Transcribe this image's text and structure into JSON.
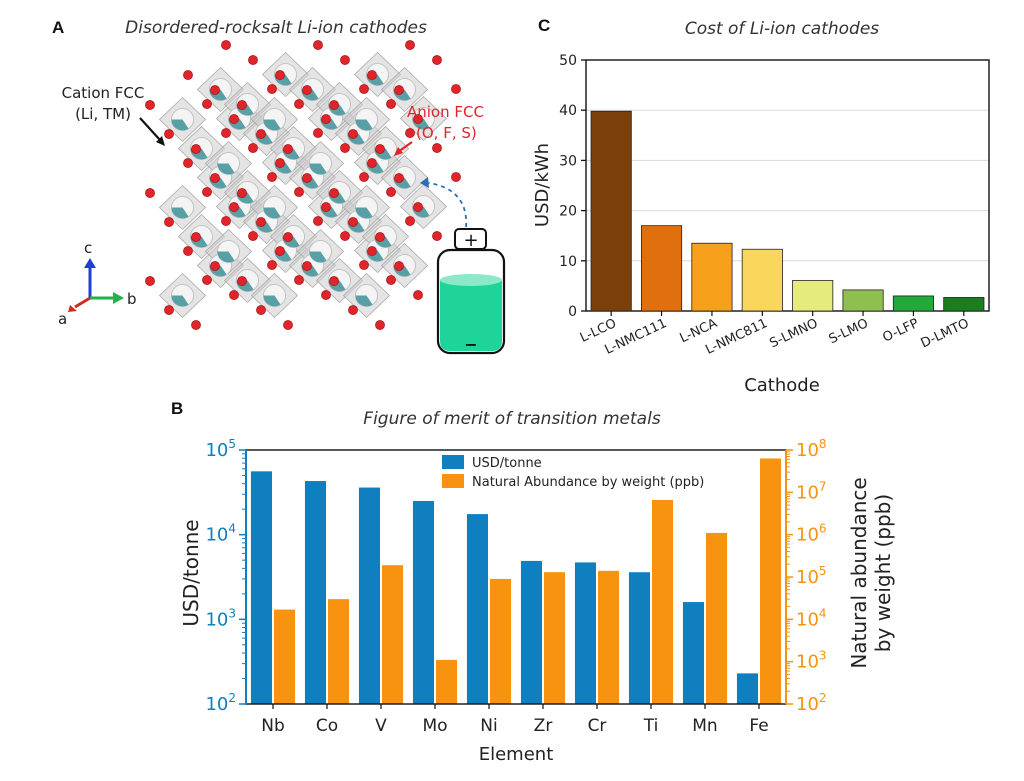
{
  "panels": {
    "a": {
      "letter": "A",
      "title": "Disordered-rocksalt Li-ion cathodes",
      "cation_label_1": "Cation FCC",
      "cation_label_2": "(Li, TM)",
      "anion_label_1": "Anion FCC",
      "anion_label_2": "(O, F, S)",
      "axis_c": "c",
      "axis_a": "a",
      "axis_b": "b",
      "battery_plus": "+",
      "battery_minus": "−",
      "colors": {
        "anion": "#e0242a",
        "cation": "#3d8f98",
        "battery_liquid": "#1fd49a"
      }
    },
    "b": {
      "letter": "B"
    },
    "c": {
      "letter": "C"
    }
  },
  "chart_data": [
    {
      "id": "C",
      "type": "bar",
      "title": "Cost of Li-ion cathodes",
      "xlabel": "Cathode",
      "ylabel": "USD/kWh",
      "ylim": [
        0,
        50
      ],
      "yticks": [
        0,
        10,
        20,
        30,
        40,
        50
      ],
      "grid": true,
      "categories": [
        "L-LCO",
        "L-NMC111",
        "L-NCA",
        "L-NMC811",
        "S-LMNO",
        "S-LMO",
        "O-LFP",
        "D-LMTO"
      ],
      "values": [
        39.8,
        17.0,
        13.5,
        12.3,
        6.1,
        4.2,
        3.0,
        2.7
      ],
      "colors": [
        "#7a3f0a",
        "#e0700e",
        "#f6a01c",
        "#f9d75c",
        "#e3ec7d",
        "#8fc04f",
        "#23a83a",
        "#1a7e1f"
      ]
    },
    {
      "id": "B",
      "type": "bar",
      "title": "Figure of merit of transition metals",
      "xlabel": "Element",
      "ylabel": "USD/tonne",
      "ylabel_right_1": "Natural abundance",
      "ylabel_right_2": "by weight (ppb)",
      "yscale": "log",
      "ylim": [
        100,
        100000
      ],
      "ylim_right": [
        100,
        100000000
      ],
      "legend_position": "top-center",
      "categories": [
        "Nb",
        "Co",
        "V",
        "Mo",
        "Ni",
        "Zr",
        "Cr",
        "Ti",
        "Mn",
        "Fe"
      ],
      "series": [
        {
          "name": "USD/tonne",
          "axis": "left",
          "color": "#0f7fc0",
          "values": [
            56000,
            43000,
            36000,
            25000,
            17500,
            4900,
            4700,
            3600,
            1600,
            230
          ]
        },
        {
          "name": "Natural Abundance by weight (ppb)",
          "axis": "right",
          "color": "#f7930f",
          "values": [
            17000,
            30000,
            190000,
            1100,
            90000,
            130000,
            140000,
            6600000,
            1100000,
            63000000
          ]
        }
      ]
    }
  ]
}
